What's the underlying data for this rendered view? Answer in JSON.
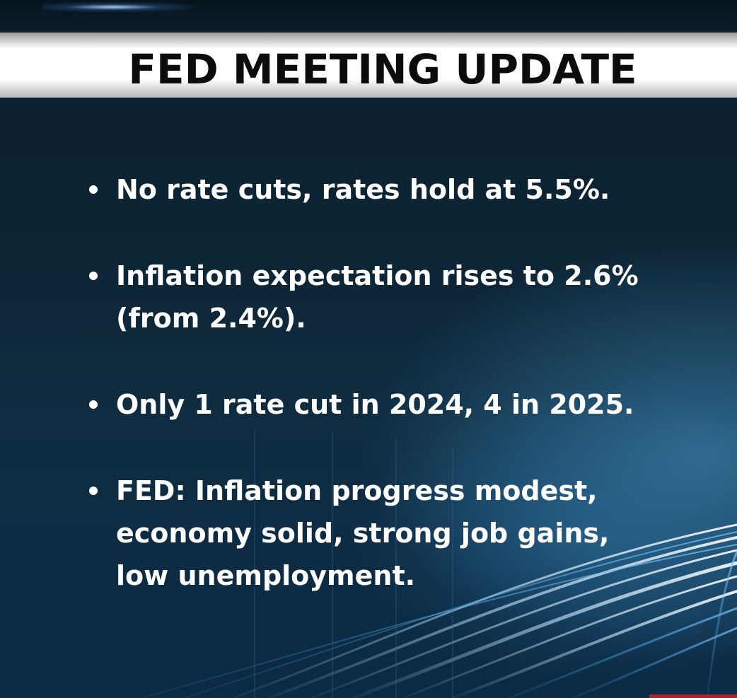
{
  "title": "FED MEETING UPDATE",
  "bullets": [
    "No rate cuts, rates hold at 5.5%.",
    "Inflation expectation rises to 2.6% (from 2.4%).",
    "Only 1 rate cut in 2024, 4 in 2025.",
    "FED: Inflation progress modest, economy solid, strong job gains, low unemployment."
  ],
  "colors": {
    "background": "#0b2233",
    "title_text": "#0c0c0c",
    "bullet_text": "#ffffff",
    "title_band": "#ffffff",
    "accent_red": "#b0202a"
  },
  "background_image": "highway-light-trails"
}
